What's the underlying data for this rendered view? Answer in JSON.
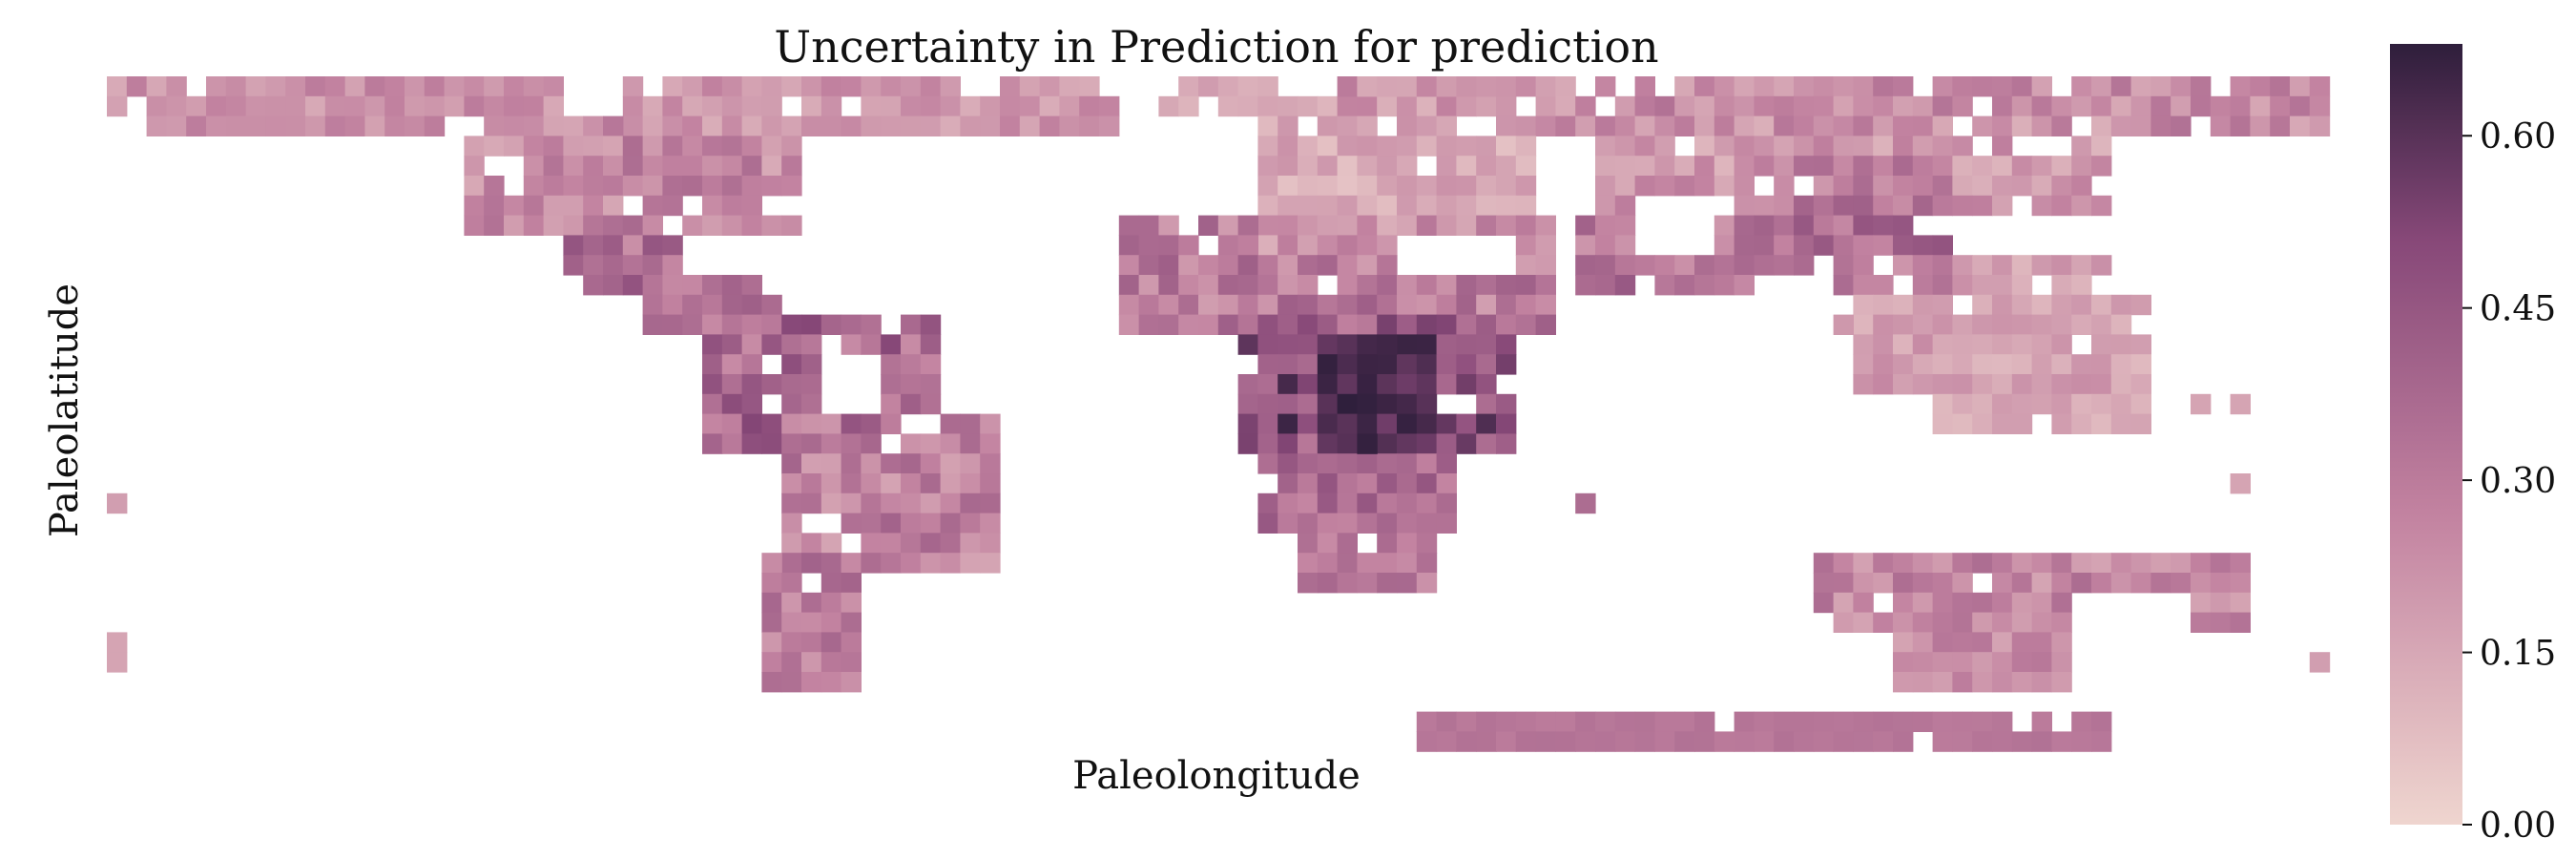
{
  "chart_data": {
    "type": "heatmap",
    "title": "Uncertainty in Prediction for prediction",
    "xlabel": "Paleolongitude",
    "ylabel": "Paleolatitude",
    "colorbar": {
      "range": [
        0.0,
        0.68
      ],
      "ticks": [
        0.0,
        0.15,
        0.3,
        0.45,
        0.6
      ],
      "tick_labels": [
        "0.00",
        "0.15",
        "0.30",
        "0.45",
        "0.60"
      ],
      "color_low": "#efd5cf",
      "color_high": "#2e1e3b"
    },
    "grid": {
      "columns": 112,
      "rows": 34,
      "cells": "Uncertainty values per land cell on a regular paleolongitude/paleolatitude grid; estimated from colour: most land 0.15–0.35, Africa interior 0.45–0.68, northern Eurasia and Sahara 0.05–0.20."
    },
    "regions": [
      {
        "name": "North America",
        "value_range": [
          0.1,
          0.35
        ]
      },
      {
        "name": "Greenland / arctic",
        "value_range": [
          0.15,
          0.3
        ]
      },
      {
        "name": "Central America",
        "value_range": [
          0.25,
          0.5
        ]
      },
      {
        "name": "South America",
        "value_range": [
          0.2,
          0.55
        ]
      },
      {
        "name": "Europe / north Africa",
        "value_range": [
          0.05,
          0.3
        ]
      },
      {
        "name": "Central Africa",
        "value_range": [
          0.3,
          0.68
        ]
      },
      {
        "name": "Asia",
        "value_range": [
          0.05,
          0.45
        ]
      },
      {
        "name": "Australia",
        "value_range": [
          0.15,
          0.35
        ]
      },
      {
        "name": "Antarctica strip",
        "value_range": [
          0.3,
          0.35
        ]
      }
    ]
  }
}
